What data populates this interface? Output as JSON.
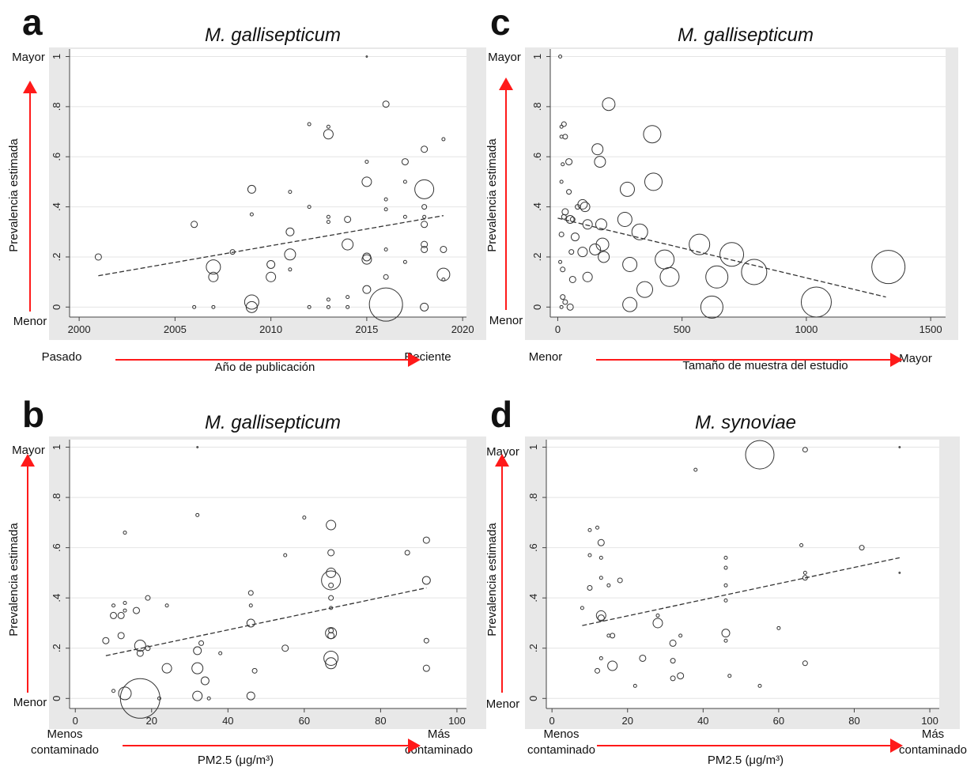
{
  "colors": {
    "arrow": "#ff1a1a",
    "plot_bg": "#ffffff",
    "panel_bg": "#e8e8e8",
    "grid": "#e4e4e4",
    "marker": "#333333",
    "fit": "#333333"
  },
  "chart_data": [
    {
      "letter": "a",
      "type": "scatter",
      "title": "M. gallisepticum",
      "xlabel": "Año de publicación",
      "ylabel": "Prevalencia estimada",
      "x_left": "Pasado",
      "x_right": "Reciente",
      "y_top": "Mayor",
      "y_bottom": "Menor",
      "xlim": [
        1999.5,
        2020.2
      ],
      "ylim": [
        -0.04,
        1.03
      ],
      "xticks": [
        2000,
        2005,
        2010,
        2015,
        2020
      ],
      "xtick_labels": [
        "2000",
        "2005",
        "2010",
        "2015",
        "2020"
      ],
      "yticks": [
        0,
        0.2,
        0.4,
        0.6,
        0.8,
        1
      ],
      "ytick_labels": [
        "0",
        ".2",
        ".4",
        ".6",
        ".8",
        "1"
      ],
      "fit": [
        [
          2001,
          0.125
        ],
        [
          2019,
          0.365
        ]
      ],
      "points": [
        [
          2001,
          0.2,
          4
        ],
        [
          2006,
          0.33,
          4
        ],
        [
          2006,
          0.0,
          2
        ],
        [
          2007,
          0.16,
          9
        ],
        [
          2007,
          0.12,
          6
        ],
        [
          2007,
          0.0,
          2
        ],
        [
          2008,
          0.22,
          3
        ],
        [
          2009,
          0.47,
          5
        ],
        [
          2009,
          0.37,
          2
        ],
        [
          2009,
          0.02,
          9
        ],
        [
          2009,
          0.0,
          7
        ],
        [
          2010,
          0.17,
          5
        ],
        [
          2010,
          0.12,
          6
        ],
        [
          2011,
          0.46,
          2
        ],
        [
          2011,
          0.3,
          5
        ],
        [
          2011,
          0.21,
          7
        ],
        [
          2011,
          0.15,
          2
        ],
        [
          2012,
          0.73,
          2
        ],
        [
          2012,
          0.4,
          2
        ],
        [
          2012,
          0.0,
          2
        ],
        [
          2013,
          0.72,
          2
        ],
        [
          2013,
          0.69,
          6
        ],
        [
          2013,
          0.36,
          2
        ],
        [
          2013,
          0.34,
          2
        ],
        [
          2013,
          0.03,
          2
        ],
        [
          2013,
          0.0,
          2
        ],
        [
          2014,
          0.35,
          4
        ],
        [
          2014,
          0.25,
          7
        ],
        [
          2014,
          0.04,
          2
        ],
        [
          2014,
          0.0,
          2
        ],
        [
          2015,
          1.0,
          1
        ],
        [
          2015,
          0.58,
          2
        ],
        [
          2015,
          0.5,
          6
        ],
        [
          2015,
          0.2,
          5
        ],
        [
          2015,
          0.19,
          6
        ],
        [
          2015,
          0.07,
          5
        ],
        [
          2016,
          0.81,
          4
        ],
        [
          2016,
          0.43,
          2
        ],
        [
          2016,
          0.39,
          2
        ],
        [
          2016,
          0.23,
          2
        ],
        [
          2016,
          0.12,
          3
        ],
        [
          2016,
          0.01,
          21
        ],
        [
          2017,
          0.58,
          4
        ],
        [
          2017,
          0.5,
          2
        ],
        [
          2017,
          0.36,
          2
        ],
        [
          2017,
          0.18,
          2
        ],
        [
          2018,
          0.63,
          4
        ],
        [
          2018,
          0.47,
          12
        ],
        [
          2018,
          0.4,
          3
        ],
        [
          2018,
          0.36,
          2
        ],
        [
          2018,
          0.33,
          4
        ],
        [
          2018,
          0.25,
          4
        ],
        [
          2018,
          0.23,
          4
        ],
        [
          2018,
          0.0,
          5
        ],
        [
          2019,
          0.67,
          2
        ],
        [
          2019,
          0.23,
          4
        ],
        [
          2019,
          0.13,
          8
        ],
        [
          2019,
          0.11,
          2
        ]
      ]
    },
    {
      "letter": "c",
      "type": "scatter",
      "title": "M. gallisepticum",
      "xlabel": "Tamaño de muestra del estudio",
      "ylabel": "Prevalencia estimada",
      "x_left": "Menor",
      "x_right": "Mayor",
      "y_top": "Mayor",
      "y_bottom": "Menor",
      "xlim": [
        -30,
        1560
      ],
      "ylim": [
        -0.04,
        1.03
      ],
      "xticks": [
        0,
        500,
        1000,
        1500
      ],
      "xtick_labels": [
        "0",
        "500",
        "1000",
        "1500"
      ],
      "yticks": [
        0,
        0.2,
        0.4,
        0.6,
        0.8,
        1
      ],
      "ytick_labels": [
        "0",
        ".2",
        ".4",
        ".6",
        ".8",
        "1"
      ],
      "fit": [
        [
          0,
          0.355
        ],
        [
          1320,
          0.04
        ]
      ],
      "points": [
        [
          10,
          1.0,
          2
        ],
        [
          15,
          0.72,
          2
        ],
        [
          25,
          0.73,
          3
        ],
        [
          15,
          0.68,
          2
        ],
        [
          30,
          0.68,
          3
        ],
        [
          20,
          0.57,
          2
        ],
        [
          45,
          0.58,
          4
        ],
        [
          15,
          0.5,
          2
        ],
        [
          45,
          0.46,
          3
        ],
        [
          30,
          0.38,
          4
        ],
        [
          25,
          0.36,
          3
        ],
        [
          50,
          0.35,
          5
        ],
        [
          60,
          0.35,
          3
        ],
        [
          15,
          0.29,
          3
        ],
        [
          70,
          0.28,
          5
        ],
        [
          10,
          0.18,
          2
        ],
        [
          20,
          0.15,
          3
        ],
        [
          55,
          0.22,
          3
        ],
        [
          60,
          0.11,
          4
        ],
        [
          20,
          0.04,
          3
        ],
        [
          30,
          0.02,
          3
        ],
        [
          15,
          0.0,
          2
        ],
        [
          50,
          0.0,
          4
        ],
        [
          80,
          0.4,
          3
        ],
        [
          100,
          0.41,
          6
        ],
        [
          110,
          0.4,
          6
        ],
        [
          120,
          0.33,
          6
        ],
        [
          100,
          0.22,
          6
        ],
        [
          120,
          0.12,
          6
        ],
        [
          150,
          0.23,
          7
        ],
        [
          160,
          0.63,
          7
        ],
        [
          170,
          0.58,
          7
        ],
        [
          175,
          0.33,
          7
        ],
        [
          180,
          0.25,
          8
        ],
        [
          185,
          0.2,
          7
        ],
        [
          205,
          0.81,
          8
        ],
        [
          270,
          0.35,
          9
        ],
        [
          280,
          0.47,
          9
        ],
        [
          290,
          0.17,
          9
        ],
        [
          290,
          0.01,
          9
        ],
        [
          330,
          0.3,
          10
        ],
        [
          350,
          0.07,
          10
        ],
        [
          380,
          0.69,
          11
        ],
        [
          385,
          0.5,
          11
        ],
        [
          430,
          0.19,
          12
        ],
        [
          450,
          0.12,
          12
        ],
        [
          570,
          0.25,
          13
        ],
        [
          620,
          0.0,
          14
        ],
        [
          640,
          0.12,
          14
        ],
        [
          700,
          0.21,
          15
        ],
        [
          790,
          0.14,
          16
        ],
        [
          1040,
          0.02,
          19
        ],
        [
          1330,
          0.16,
          21
        ]
      ]
    },
    {
      "letter": "b",
      "type": "scatter",
      "title": "M. gallisepticum",
      "xlabel": "PM2.5 (μg/m³)",
      "ylabel": "Prevalencia estimada",
      "x_left": "Menos\ncontaminado",
      "x_right": "Más\ncontaminado",
      "y_top": "Mayor",
      "y_bottom": "Menor",
      "xlim": [
        -1.5,
        102.5
      ],
      "ylim": [
        -0.04,
        1.03
      ],
      "xticks": [
        0,
        20,
        40,
        60,
        80,
        100
      ],
      "xtick_labels": [
        "0",
        "20",
        "40",
        "60",
        "80",
        "100"
      ],
      "yticks": [
        0,
        0.2,
        0.4,
        0.6,
        0.8,
        1
      ],
      "ytick_labels": [
        "0",
        ".2",
        ".4",
        ".6",
        ".8",
        "1"
      ],
      "fit": [
        [
          8,
          0.17
        ],
        [
          92,
          0.44
        ]
      ],
      "points": [
        [
          8,
          0.23,
          4
        ],
        [
          10,
          0.37,
          2
        ],
        [
          10,
          0.33,
          4
        ],
        [
          10,
          0.03,
          2
        ],
        [
          12,
          0.33,
          4
        ],
        [
          12,
          0.25,
          4
        ],
        [
          13,
          0.66,
          2
        ],
        [
          13,
          0.38,
          2
        ],
        [
          13,
          0.35,
          2
        ],
        [
          13,
          0.02,
          8
        ],
        [
          16,
          0.35,
          4
        ],
        [
          17,
          0.21,
          7
        ],
        [
          17,
          0.18,
          4
        ],
        [
          17,
          0.0,
          25
        ],
        [
          19,
          0.4,
          3
        ],
        [
          19,
          0.2,
          3
        ],
        [
          22,
          0.0,
          2
        ],
        [
          24,
          0.37,
          2
        ],
        [
          24,
          0.12,
          6
        ],
        [
          32,
          1.0,
          1
        ],
        [
          32,
          0.73,
          2
        ],
        [
          32,
          0.19,
          5
        ],
        [
          32,
          0.12,
          7
        ],
        [
          32,
          0.01,
          6
        ],
        [
          33,
          0.22,
          3
        ],
        [
          34,
          0.07,
          5
        ],
        [
          35,
          0.0,
          2
        ],
        [
          38,
          0.18,
          2
        ],
        [
          46,
          0.42,
          3
        ],
        [
          46,
          0.37,
          2
        ],
        [
          46,
          0.3,
          5
        ],
        [
          46,
          0.01,
          5
        ],
        [
          47,
          0.11,
          3
        ],
        [
          55,
          0.57,
          2
        ],
        [
          55,
          0.2,
          4
        ],
        [
          60,
          0.72,
          2
        ],
        [
          67,
          0.69,
          6
        ],
        [
          67,
          0.58,
          4
        ],
        [
          67,
          0.5,
          6
        ],
        [
          67,
          0.47,
          12
        ],
        [
          67,
          0.45,
          3
        ],
        [
          67,
          0.4,
          3
        ],
        [
          67,
          0.36,
          2
        ],
        [
          67,
          0.27,
          3
        ],
        [
          67,
          0.26,
          7
        ],
        [
          67,
          0.25,
          4
        ],
        [
          67,
          0.16,
          9
        ],
        [
          67,
          0.14,
          7
        ],
        [
          87,
          0.58,
          3
        ],
        [
          92,
          0.63,
          4
        ],
        [
          92,
          0.47,
          5
        ],
        [
          92,
          0.23,
          3
        ],
        [
          92,
          0.12,
          4
        ]
      ]
    },
    {
      "letter": "d",
      "type": "scatter",
      "title": "M. synoviae",
      "xlabel": "PM2.5 (μg/m³)",
      "ylabel": "Prevalencia estimada",
      "x_left": "Menos\ncontaminado",
      "x_right": "Más\ncontaminado",
      "y_top": "Mayor",
      "y_bottom": "Menor",
      "xlim": [
        -1.5,
        102.5
      ],
      "ylim": [
        -0.04,
        1.03
      ],
      "xticks": [
        0,
        20,
        40,
        60,
        80,
        100
      ],
      "xtick_labels": [
        "0",
        "20",
        "40",
        "60",
        "80",
        "100"
      ],
      "yticks": [
        0,
        0.2,
        0.4,
        0.6,
        0.8,
        1
      ],
      "ytick_labels": [
        "0",
        ".2",
        ".4",
        ".6",
        ".8",
        "1"
      ],
      "fit": [
        [
          8,
          0.29
        ],
        [
          92,
          0.56
        ]
      ],
      "points": [
        [
          8,
          0.36,
          2
        ],
        [
          10,
          0.67,
          2
        ],
        [
          10,
          0.57,
          2
        ],
        [
          10,
          0.44,
          3
        ],
        [
          12,
          0.68,
          2
        ],
        [
          12,
          0.11,
          3
        ],
        [
          13,
          0.62,
          4
        ],
        [
          13,
          0.56,
          2
        ],
        [
          13,
          0.48,
          2
        ],
        [
          13,
          0.33,
          6
        ],
        [
          13,
          0.32,
          4
        ],
        [
          13,
          0.16,
          2
        ],
        [
          15,
          0.45,
          2
        ],
        [
          15,
          0.25,
          2
        ],
        [
          16,
          0.25,
          3
        ],
        [
          16,
          0.13,
          6
        ],
        [
          18,
          0.47,
          3
        ],
        [
          22,
          0.05,
          2
        ],
        [
          24,
          0.16,
          4
        ],
        [
          28,
          0.33,
          2
        ],
        [
          28,
          0.3,
          6
        ],
        [
          32,
          0.22,
          4
        ],
        [
          32,
          0.15,
          3
        ],
        [
          32,
          0.08,
          3
        ],
        [
          34,
          0.25,
          2
        ],
        [
          34,
          0.09,
          4
        ],
        [
          38,
          0.91,
          2
        ],
        [
          46,
          0.56,
          2
        ],
        [
          46,
          0.52,
          2
        ],
        [
          46,
          0.45,
          2
        ],
        [
          46,
          0.39,
          2
        ],
        [
          46,
          0.26,
          5
        ],
        [
          46,
          0.23,
          2
        ],
        [
          47,
          0.09,
          2
        ],
        [
          55,
          0.97,
          18
        ],
        [
          55,
          0.05,
          2
        ],
        [
          60,
          0.28,
          2
        ],
        [
          66,
          0.61,
          2
        ],
        [
          67,
          0.99,
          3
        ],
        [
          67,
          0.5,
          2
        ],
        [
          67,
          0.48,
          3
        ],
        [
          67,
          0.14,
          3
        ],
        [
          82,
          0.6,
          3
        ],
        [
          92,
          1.0,
          1
        ],
        [
          92,
          0.5,
          1
        ]
      ]
    }
  ]
}
